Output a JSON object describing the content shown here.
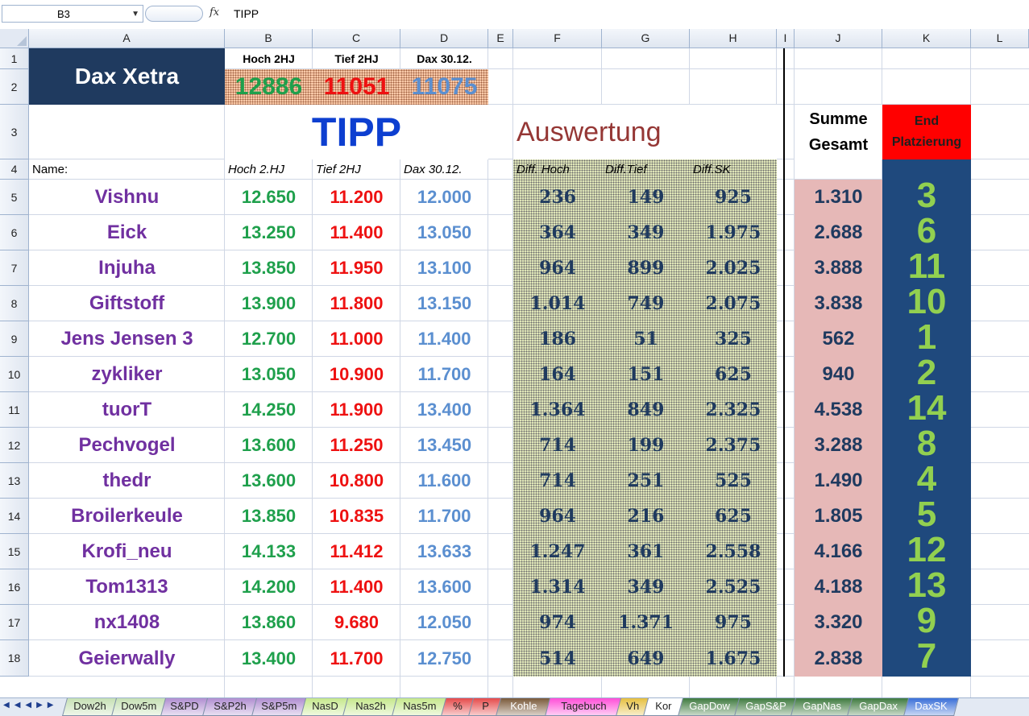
{
  "formula_bar": {
    "cell_ref": "B3",
    "fx": "fx",
    "value": "TIPP"
  },
  "columns": [
    "A",
    "B",
    "C",
    "D",
    "E",
    "F",
    "G",
    "H",
    "I",
    "J",
    "K",
    "L"
  ],
  "rows": [
    "1",
    "2",
    "3",
    "4",
    "5",
    "6",
    "7",
    "8",
    "9",
    "10",
    "11",
    "12",
    "13",
    "14",
    "15",
    "16",
    "17",
    "18"
  ],
  "header": {
    "title": "Dax Xetra",
    "hoch_label": "Hoch 2HJ",
    "tief_label": "Tief 2HJ",
    "dax_label": "Dax 30.12.",
    "hoch_value": "12886",
    "tief_value": "11051",
    "dax_value": "11075",
    "tipp": "TIPP",
    "auswertung": "Auswertung",
    "summe_line1": "Summe",
    "summe_line2": "Gesamt",
    "end_line1": "End",
    "end_line2": "Platzierung",
    "name_col": "Name:",
    "col_hoch": "Hoch 2.HJ",
    "col_tief": "Tief 2HJ",
    "col_dax": "Dax 30.12.",
    "col_diff_hoch": "Diff. Hoch",
    "col_diff_tief": "Diff.Tief",
    "col_diff_sk": "Diff.SK"
  },
  "entries": [
    {
      "name": "Vishnu",
      "hoch": "12.650",
      "tief": "11.200",
      "dax": "12.000",
      "dh": "236",
      "dt": "149",
      "dsk": "925",
      "sum": "1.310",
      "rank": "3"
    },
    {
      "name": "Eick",
      "hoch": "13.250",
      "tief": "11.400",
      "dax": "13.050",
      "dh": "364",
      "dt": "349",
      "dsk": "1.975",
      "sum": "2.688",
      "rank": "6"
    },
    {
      "name": "Injuha",
      "hoch": "13.850",
      "tief": "11.950",
      "dax": "13.100",
      "dh": "964",
      "dt": "899",
      "dsk": "2.025",
      "sum": "3.888",
      "rank": "11"
    },
    {
      "name": "Giftstoff",
      "hoch": "13.900",
      "tief": "11.800",
      "dax": "13.150",
      "dh": "1.014",
      "dt": "749",
      "dsk": "2.075",
      "sum": "3.838",
      "rank": "10"
    },
    {
      "name": "Jens Jensen 3",
      "hoch": "12.700",
      "tief": "11.000",
      "dax": "11.400",
      "dh": "186",
      "dt": "51",
      "dsk": "325",
      "sum": "562",
      "rank": "1"
    },
    {
      "name": "zykliker",
      "hoch": "13.050",
      "tief": "10.900",
      "dax": "11.700",
      "dh": "164",
      "dt": "151",
      "dsk": "625",
      "sum": "940",
      "rank": "2"
    },
    {
      "name": "tuorT",
      "hoch": "14.250",
      "tief": "11.900",
      "dax": "13.400",
      "dh": "1.364",
      "dt": "849",
      "dsk": "2.325",
      "sum": "4.538",
      "rank": "14"
    },
    {
      "name": "Pechvogel",
      "hoch": "13.600",
      "tief": "11.250",
      "dax": "13.450",
      "dh": "714",
      "dt": "199",
      "dsk": "2.375",
      "sum": "3.288",
      "rank": "8"
    },
    {
      "name": "thedr",
      "hoch": "13.600",
      "tief": "10.800",
      "dax": "11.600",
      "dh": "714",
      "dt": "251",
      "dsk": "525",
      "sum": "1.490",
      "rank": "4"
    },
    {
      "name": "Broilerkeule",
      "hoch": "13.850",
      "tief": "10.835",
      "dax": "11.700",
      "dh": "964",
      "dt": "216",
      "dsk": "625",
      "sum": "1.805",
      "rank": "5"
    },
    {
      "name": "Krofi_neu",
      "hoch": "14.133",
      "tief": "11.412",
      "dax": "13.633",
      "dh": "1.247",
      "dt": "361",
      "dsk": "2.558",
      "sum": "4.166",
      "rank": "12"
    },
    {
      "name": "Tom1313",
      "hoch": "14.200",
      "tief": "11.400",
      "dax": "13.600",
      "dh": "1.314",
      "dt": "349",
      "dsk": "2.525",
      "sum": "4.188",
      "rank": "13"
    },
    {
      "name": "nx1408",
      "hoch": "13.860",
      "tief": "9.680",
      "dax": "12.050",
      "dh": "974",
      "dt": "1.371",
      "dsk": "975",
      "sum": "3.320",
      "rank": "9"
    },
    {
      "name": "Geierwally",
      "hoch": "13.400",
      "tief": "11.700",
      "dax": "12.750",
      "dh": "514",
      "dt": "649",
      "dsk": "1.675",
      "sum": "2.838",
      "rank": "7"
    }
  ],
  "sheet_tabs": [
    {
      "label": "Dow2h",
      "color": "#c6e0b4"
    },
    {
      "label": "Dow5m",
      "color": "#c6e0b4"
    },
    {
      "label": "S&PD",
      "color": "#b18fd1"
    },
    {
      "label": "S&P2h",
      "color": "#b18fd1"
    },
    {
      "label": "S&P5m",
      "color": "#b18fd1"
    },
    {
      "label": "NasD",
      "color": "#c6e88c"
    },
    {
      "label": "Nas2h",
      "color": "#c6e88c"
    },
    {
      "label": "Nas5m",
      "color": "#c6e88c"
    },
    {
      "label": "%",
      "color": "#e64b4b"
    },
    {
      "label": "P",
      "color": "#e64b4b"
    },
    {
      "label": "Kohle",
      "color": "#7a5a3a"
    },
    {
      "label": "Tagebuch",
      "color": "#ff4fd8"
    },
    {
      "label": "Vh",
      "color": "#e6c040"
    },
    {
      "label": "Kor",
      "color": "#ffffff"
    },
    {
      "label": "GapDow",
      "color": "#3f7a3f"
    },
    {
      "label": "GapS&P",
      "color": "#3f7a3f"
    },
    {
      "label": "GapNas",
      "color": "#3f7a3f"
    },
    {
      "label": "GapDax",
      "color": "#3f7a3f"
    },
    {
      "label": "DaxSK",
      "color": "#3a6fd8"
    }
  ],
  "colors": {
    "green": "#1fa04c",
    "red": "#ee1111",
    "blue": "#5b8fd0",
    "purple": "#7030a0",
    "navy": "#1f3a5f",
    "rank_bg": "#1f497d",
    "rank_fg": "#92d050",
    "sum_bg": "#e6b8b7",
    "end_bg": "#ff0000",
    "tipp": "#0d3fd0",
    "auswertung": "#953735"
  }
}
